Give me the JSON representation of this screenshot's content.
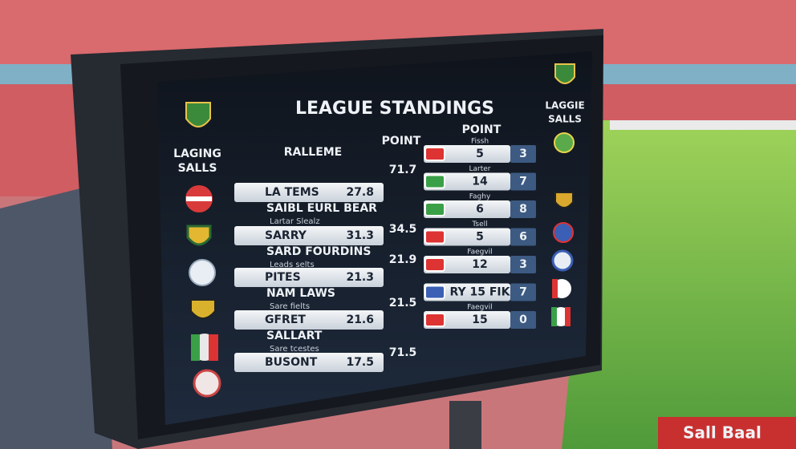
{
  "board": {
    "title": "LEAGUE STANDINGS",
    "left_label": [
      "LAGING",
      "SALLS"
    ],
    "right_label": [
      "LAGGIE",
      "SALLS"
    ],
    "headers": [
      "RALLEME",
      "POINT",
      "POINT"
    ],
    "left_rows": [
      {
        "name": "LA TEMS",
        "score": 27.8,
        "sub_name": "SAIBL EURL BEAR",
        "sub_note": "Lartar Slealz"
      },
      {
        "name": "SARRY",
        "score": 31.3,
        "sub_name": "SARD FOURDINS",
        "sub_note": "Leads selts"
      },
      {
        "name": "PITES",
        "score": 21.3,
        "sub_name": "NAM LAWS",
        "sub_note": "Sare fielts"
      },
      {
        "name": "GFRET",
        "score": 21.6,
        "sub_name": "SALLART",
        "sub_note": "Sare tcestes"
      },
      {
        "name": "BUSONT",
        "score": 17.5
      }
    ],
    "mid_points": [
      71.7,
      34.5,
      21.9,
      21.5,
      71.5
    ],
    "right_rows": [
      {
        "label": "Fissh",
        "value": 5,
        "rank": 3
      },
      {
        "label": "Larter",
        "value": 14,
        "rank": 7
      },
      {
        "label": "Faghy",
        "value": 6,
        "rank": 8
      },
      {
        "label": "Tsell",
        "value": 5,
        "rank": 6
      },
      {
        "label": "Faegvil",
        "value": 12,
        "rank": 3
      },
      {
        "value": "RY 15 FIK",
        "rank": 7
      },
      {
        "label": "Faegvil",
        "value": 15,
        "rank": 0
      }
    ],
    "ad_board": "Sall Baal"
  }
}
